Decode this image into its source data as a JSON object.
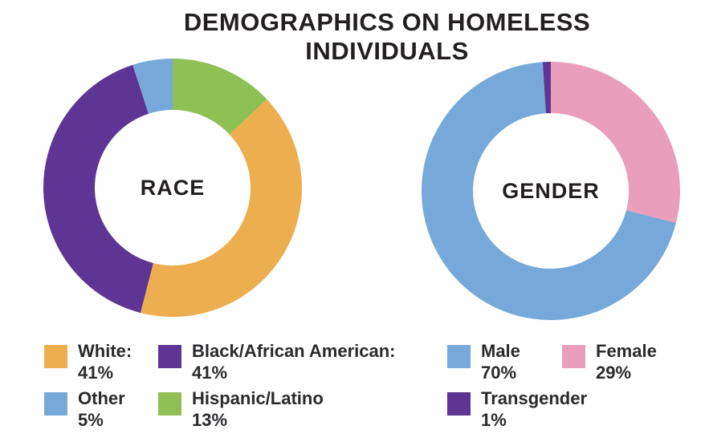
{
  "title": "DEMOGRAPHICS ON HOMELESS INDIVIDUALS",
  "text_color": "#231F20",
  "chart_data": [
    {
      "type": "pie",
      "subtype": "donut",
      "center_label": "RACE",
      "start_angle_deg": 0,
      "direction": "clockwise",
      "outer_radius_px": 161,
      "inner_radius_px": 97,
      "slices_draw_order_from_top": [
        {
          "label": "Hispanic/Latino",
          "value": 13,
          "color": "#8EC054"
        },
        {
          "label": "White",
          "value": 41,
          "color": "#ECAE4E"
        },
        {
          "label": "Black/African American",
          "value": 41,
          "color": "#5E3494"
        },
        {
          "label": "Other",
          "value": 5,
          "color": "#76A9DA"
        }
      ],
      "legend": [
        {
          "label": "White:",
          "value": "41%",
          "color": "#ECAE4E"
        },
        {
          "label": "Black/African American:",
          "value": "41%",
          "color": "#5E3494"
        },
        {
          "label": "Other",
          "value": "5%",
          "color": "#76A9DA"
        },
        {
          "label": "Hispanic/Latino",
          "value": "13%",
          "color": "#8EC054"
        }
      ]
    },
    {
      "type": "pie",
      "subtype": "donut",
      "center_label": "GENDER",
      "start_angle_deg": 0,
      "direction": "clockwise",
      "outer_radius_px": 161,
      "inner_radius_px": 97,
      "slices_draw_order_from_top": [
        {
          "label": "Female",
          "value": 29,
          "color": "#E99FBC"
        },
        {
          "label": "Male",
          "value": 70,
          "color": "#76A9DA"
        },
        {
          "label": "Transgender",
          "value": 1,
          "color": "#5E3494"
        }
      ],
      "legend": [
        {
          "label": "Male",
          "value": "70%",
          "color": "#76A9DA"
        },
        {
          "label": "Female",
          "value": "29%",
          "color": "#E99FBC"
        },
        {
          "label": "Transgender",
          "value": "1%",
          "color": "#5E3494"
        }
      ]
    }
  ]
}
